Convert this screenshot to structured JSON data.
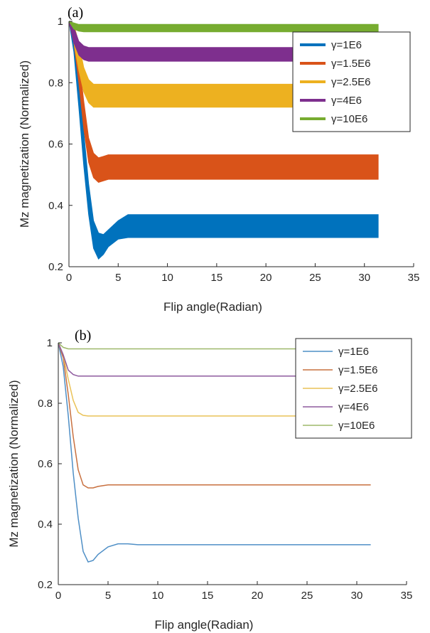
{
  "chart_data": [
    {
      "type": "area",
      "panel_label": "(a)",
      "xlabel": "Flip angle(Radian)",
      "ylabel": "Mz magnetization (Normalized)",
      "xlim": [
        0,
        35
      ],
      "ylim": [
        0.2,
        1
      ],
      "xticks": [
        "0",
        "5",
        "10",
        "15",
        "20",
        "25",
        "30",
        "35"
      ],
      "yticks": [
        "0.2",
        "0.4",
        "0.6",
        "0.8",
        "1"
      ],
      "legend_position": "top-right",
      "grid": false,
      "x": [
        0,
        0.5,
        1,
        1.5,
        2,
        2.5,
        3,
        3.5,
        4,
        5,
        6,
        7,
        8,
        10,
        15,
        20,
        25,
        31.4
      ],
      "series": [
        {
          "name": "γ=1E6",
          "color": "#0072bd",
          "lower": [
            1,
            0.9,
            0.72,
            0.53,
            0.37,
            0.26,
            0.225,
            0.24,
            0.265,
            0.29,
            0.295,
            0.295,
            0.295,
            0.295,
            0.295,
            0.295,
            0.295,
            0.295
          ],
          "upper": [
            1,
            0.97,
            0.82,
            0.64,
            0.47,
            0.35,
            0.31,
            0.305,
            0.32,
            0.35,
            0.37,
            0.37,
            0.37,
            0.37,
            0.37,
            0.37,
            0.37,
            0.37
          ]
        },
        {
          "name": "γ=1.5E6",
          "color": "#d95319",
          "lower": [
            1,
            0.93,
            0.8,
            0.65,
            0.54,
            0.49,
            0.475,
            0.48,
            0.485,
            0.485,
            0.485,
            0.485,
            0.485,
            0.485,
            0.485,
            0.485,
            0.485,
            0.485
          ],
          "upper": [
            1,
            0.98,
            0.88,
            0.74,
            0.62,
            0.57,
            0.555,
            0.56,
            0.565,
            0.565,
            0.565,
            0.565,
            0.565,
            0.565,
            0.565,
            0.565,
            0.565,
            0.565
          ]
        },
        {
          "name": "γ=2.5E6",
          "color": "#edb120",
          "lower": [
            1,
            0.93,
            0.84,
            0.77,
            0.735,
            0.72,
            0.72,
            0.72,
            0.72,
            0.72,
            0.72,
            0.72,
            0.72,
            0.72,
            0.72,
            0.72,
            0.72,
            0.72
          ],
          "upper": [
            1,
            0.99,
            0.93,
            0.85,
            0.81,
            0.795,
            0.795,
            0.795,
            0.795,
            0.795,
            0.795,
            0.795,
            0.795,
            0.795,
            0.795,
            0.795,
            0.795,
            0.795
          ]
        },
        {
          "name": "γ=4E6",
          "color": "#7e2f8e",
          "lower": [
            1,
            0.93,
            0.89,
            0.875,
            0.87,
            0.87,
            0.87,
            0.87,
            0.87,
            0.87,
            0.87,
            0.87,
            0.87,
            0.87,
            0.87,
            0.87,
            0.87,
            0.87
          ],
          "upper": [
            1,
            0.98,
            0.935,
            0.92,
            0.915,
            0.915,
            0.915,
            0.915,
            0.915,
            0.915,
            0.915,
            0.915,
            0.915,
            0.915,
            0.915,
            0.915,
            0.915,
            0.915
          ]
        },
        {
          "name": "γ=10E6",
          "color": "#77ac30",
          "lower": [
            1,
            0.975,
            0.968,
            0.966,
            0.966,
            0.966,
            0.966,
            0.966,
            0.966,
            0.966,
            0.966,
            0.966,
            0.966,
            0.966,
            0.966,
            0.966,
            0.966,
            0.966
          ],
          "upper": [
            1,
            0.995,
            0.99,
            0.99,
            0.99,
            0.99,
            0.99,
            0.99,
            0.99,
            0.99,
            0.99,
            0.99,
            0.99,
            0.99,
            0.99,
            0.99,
            0.99,
            0.99
          ]
        }
      ]
    },
    {
      "type": "line",
      "panel_label": "(b)",
      "xlabel": "Flip angle(Radian)",
      "ylabel": "Mz magnetization (Normalized)",
      "xlim": [
        0,
        35
      ],
      "ylim": [
        0.2,
        1
      ],
      "xticks": [
        "0",
        "5",
        "10",
        "15",
        "20",
        "25",
        "30",
        "35"
      ],
      "yticks": [
        "0.2",
        "0.4",
        "0.6",
        "0.8",
        "1"
      ],
      "legend_position": "top-right",
      "grid": false,
      "x": [
        0,
        0.5,
        1,
        1.5,
        2,
        2.5,
        3,
        3.5,
        4,
        5,
        6,
        7,
        8,
        10,
        15,
        20,
        25,
        31.4
      ],
      "series": [
        {
          "name": "γ=1E6",
          "color": "#4f8fc6",
          "values": [
            1,
            0.92,
            0.76,
            0.57,
            0.42,
            0.31,
            0.275,
            0.28,
            0.3,
            0.325,
            0.335,
            0.335,
            0.332,
            0.332,
            0.332,
            0.332,
            0.332,
            0.332
          ]
        },
        {
          "name": "γ=1.5E6",
          "color": "#c8703f",
          "values": [
            1,
            0.95,
            0.83,
            0.69,
            0.58,
            0.53,
            0.52,
            0.52,
            0.525,
            0.53,
            0.53,
            0.53,
            0.53,
            0.53,
            0.53,
            0.53,
            0.53,
            0.53
          ]
        },
        {
          "name": "γ=2.5E6",
          "color": "#eac257",
          "values": [
            1,
            0.96,
            0.88,
            0.81,
            0.77,
            0.76,
            0.758,
            0.758,
            0.758,
            0.758,
            0.758,
            0.758,
            0.758,
            0.758,
            0.758,
            0.758,
            0.758,
            0.758
          ]
        },
        {
          "name": "γ=4E6",
          "color": "#8e5a9e",
          "values": [
            1,
            0.96,
            0.91,
            0.895,
            0.89,
            0.89,
            0.89,
            0.89,
            0.89,
            0.89,
            0.89,
            0.89,
            0.89,
            0.89,
            0.89,
            0.89,
            0.89,
            0.89
          ]
        },
        {
          "name": "γ=10E6",
          "color": "#9eb86a",
          "values": [
            1,
            0.985,
            0.98,
            0.98,
            0.98,
            0.98,
            0.98,
            0.98,
            0.98,
            0.98,
            0.98,
            0.98,
            0.98,
            0.98,
            0.98,
            0.98,
            0.98,
            0.98
          ]
        }
      ]
    }
  ]
}
